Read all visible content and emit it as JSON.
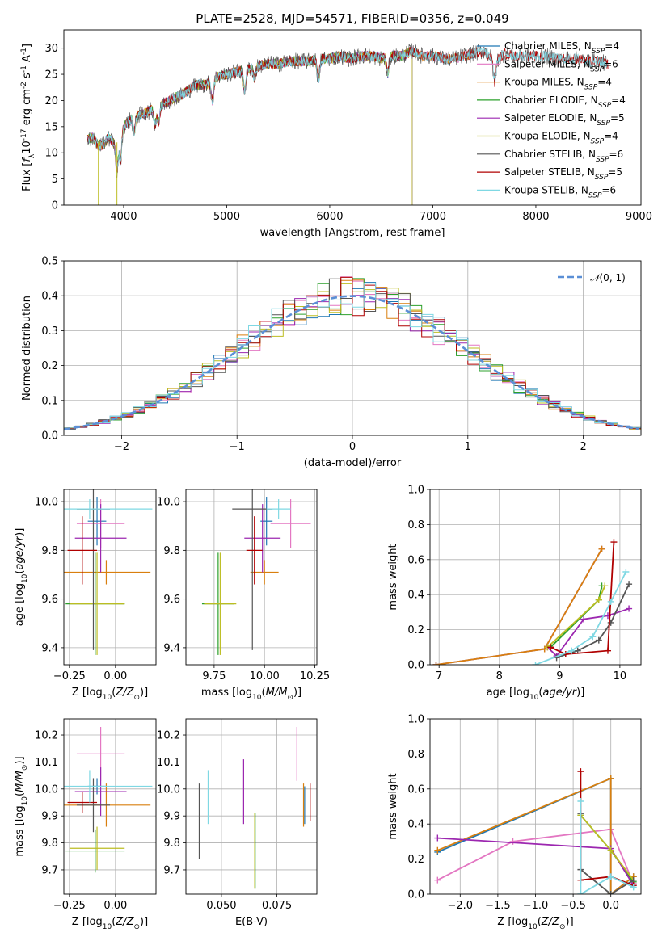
{
  "title": "PLATE=2528, MJD=54571, FIBERID=0356, z=0.049",
  "colors": {
    "Chabrier MILES": "#1f77b4",
    "Salpeter MILES": "#e377c2",
    "Kroupa MILES": "#d97f0e",
    "Chabrier ELODIE": "#2ca02c",
    "Salpeter ELODIE": "#9c27b0",
    "Kroupa ELODIE": "#bcbd22",
    "Chabrier STELIB": "#555555",
    "Salpeter STELIB": "#b00000",
    "Kroupa STELIB": "#7fd8e3",
    "normal_curve": "#5b8fd6"
  },
  "chart_data": [
    {
      "type": "line",
      "xlabel": "wavelength [Angstrom, rest frame]",
      "ylabel": "Flux [f_λ10^-17 erg cm^-2 s^-1 A^-1]",
      "xlim": [
        3420,
        9020
      ],
      "ylim": [
        0,
        33.5
      ],
      "xticks": [
        4000,
        5000,
        6000,
        7000,
        8000,
        9000
      ],
      "yticks": [
        0,
        5,
        10,
        15,
        20,
        25,
        30
      ],
      "grid": false,
      "legend_position": "right",
      "spectrum": {
        "x": [
          3650,
          3700,
          3750,
          3800,
          3850,
          3900,
          3950,
          4000,
          4100,
          4200,
          4300,
          4400,
          4500,
          4600,
          4700,
          4800,
          4900,
          5000,
          5100,
          5200,
          5300,
          5400,
          5500,
          5600,
          5700,
          5800,
          5900,
          6000,
          6100,
          6200,
          6300,
          6400,
          6500,
          6600,
          6700,
          6800,
          6900,
          7000,
          7100,
          7200,
          7300,
          7400,
          7500,
          7600,
          7700,
          7800,
          7900,
          8000,
          8100,
          8200,
          8300,
          8400,
          8500,
          8600,
          8700
        ],
        "y": [
          12.5,
          13.0,
          11.5,
          11.5,
          13.0,
          12.0,
          14.0,
          15.0,
          17.0,
          17.5,
          18.5,
          19.5,
          20.5,
          21.5,
          23.0,
          23.0,
          24.5,
          25.0,
          25.5,
          26.0,
          26.5,
          27.0,
          27.0,
          27.5,
          27.5,
          27.5,
          28.0,
          28.0,
          28.5,
          28.0,
          28.5,
          28.5,
          28.0,
          28.5,
          28.5,
          29.5,
          28.5,
          28.5,
          28.0,
          28.0,
          28.5,
          29.0,
          29.5,
          27.5,
          29.0,
          28.5,
          28.5,
          28.5,
          28.5,
          28.0,
          28.0,
          28.0,
          27.5,
          27.5,
          27.0
        ]
      },
      "series": [
        {
          "name": "Chabrier MILES, N_SSP=4",
          "model_end": 7400
        },
        {
          "name": "Salpeter MILES, N_SSP=6",
          "model_end": 7400
        },
        {
          "name": "Kroupa MILES, N_SSP=4",
          "model_end": 7400
        },
        {
          "name": "Chabrier ELODIE, N_SSP=4",
          "model_end": 6800
        },
        {
          "name": "Salpeter ELODIE, N_SSP=5",
          "model_end": 6800
        },
        {
          "name": "Kroupa ELODIE, N_SSP=4",
          "model_end": 6800
        },
        {
          "name": "Chabrier STELIB, N_SSP=6",
          "model_end": 8700
        },
        {
          "name": "Salpeter STELIB, N_SSP=5",
          "model_end": 8700
        },
        {
          "name": "Kroupa STELIB, N_SSP=6",
          "model_end": 8700
        }
      ]
    },
    {
      "type": "line",
      "xlabel": "(data-model)/error",
      "ylabel": "Normed distribution",
      "xlim": [
        -2.5,
        2.5
      ],
      "ylim": [
        0,
        0.5
      ],
      "xticks": [
        -2,
        -1,
        0,
        1,
        2
      ],
      "yticks": [
        0.0,
        0.1,
        0.2,
        0.3,
        0.4,
        0.5
      ],
      "grid": true,
      "legend_position": "top-right",
      "legend_label": "N(0,1)",
      "histogram_bin_width": 0.1
    },
    {
      "type": "scatter",
      "xlabel": "Z [log10(Z/Z☉)]",
      "ylabel": "age  [log10(age/yr)]",
      "xlim": [
        -0.28,
        0.22
      ],
      "ylim": [
        9.33,
        10.05
      ],
      "xticks": [
        -0.25,
        0.0
      ],
      "yticks": [
        9.4,
        9.6,
        9.8,
        10.0
      ],
      "points": [
        {
          "model": "Chabrier MILES",
          "x": -0.1,
          "y": 9.92,
          "xerr": 0.05,
          "yerr": 0.1
        },
        {
          "model": "Salpeter MILES",
          "x": -0.08,
          "y": 9.91,
          "xerr": 0.13,
          "yerr": 0.1
        },
        {
          "model": "Kroupa MILES",
          "x": -0.05,
          "y": 9.71,
          "xerr": 0.24,
          "yerr": 0.05
        },
        {
          "model": "Chabrier ELODIE",
          "x": -0.11,
          "y": 9.58,
          "xerr": 0.16,
          "yerr": 0.21
        },
        {
          "model": "Salpeter ELODIE",
          "x": -0.08,
          "y": 9.85,
          "xerr": 0.14,
          "yerr": 0.14
        },
        {
          "model": "Kroupa ELODIE",
          "x": -0.1,
          "y": 9.58,
          "xerr": 0.15,
          "yerr": 0.21
        },
        {
          "model": "Chabrier STELIB",
          "x": -0.12,
          "y": 9.97,
          "xerr": 0.09,
          "yerr": 0.58
        },
        {
          "model": "Salpeter STELIB",
          "x": -0.18,
          "y": 9.8,
          "xerr": 0.08,
          "yerr": 0.14
        },
        {
          "model": "Kroupa STELIB",
          "x": -0.14,
          "y": 9.97,
          "xerr": 0.34,
          "yerr": 0.04
        }
      ]
    },
    {
      "type": "scatter",
      "xlabel": "mass [log10(M/M☉)]",
      "ylabel": "",
      "xlim": [
        9.61,
        10.26
      ],
      "ylim": [
        9.33,
        10.05
      ],
      "xticks": [
        9.75,
        10.0,
        10.25
      ],
      "yticks": [
        9.4,
        9.6,
        9.8,
        10.0
      ],
      "points": [
        {
          "model": "Chabrier MILES",
          "x": 10.01,
          "y": 9.92,
          "xerr": 0.03,
          "yerr": 0.1
        },
        {
          "model": "Salpeter MILES",
          "x": 10.13,
          "y": 9.91,
          "xerr": 0.1,
          "yerr": 0.1
        },
        {
          "model": "Kroupa MILES",
          "x": 10.0,
          "y": 9.71,
          "xerr": 0.07,
          "yerr": 0.05
        },
        {
          "model": "Chabrier ELODIE",
          "x": 9.77,
          "y": 9.58,
          "xerr": 0.08,
          "yerr": 0.21
        },
        {
          "model": "Salpeter ELODIE",
          "x": 9.99,
          "y": 9.85,
          "xerr": 0.09,
          "yerr": 0.14
        },
        {
          "model": "Kroupa ELODIE",
          "x": 9.78,
          "y": 9.58,
          "xerr": 0.08,
          "yerr": 0.21
        },
        {
          "model": "Chabrier STELIB",
          "x": 9.94,
          "y": 9.97,
          "xerr": 0.1,
          "yerr": 0.58
        },
        {
          "model": "Salpeter STELIB",
          "x": 9.95,
          "y": 9.8,
          "xerr": 0.04,
          "yerr": 0.14
        },
        {
          "model": "Kroupa STELIB",
          "x": 10.07,
          "y": 9.97,
          "xerr": 0.06,
          "yerr": 0.04
        }
      ]
    },
    {
      "type": "line",
      "xlabel": "age  [log10(age/yr)]",
      "ylabel": "mass weight",
      "xlim": [
        6.85,
        10.35
      ],
      "ylim": [
        0,
        1.0
      ],
      "xticks": [
        7,
        8,
        9,
        10
      ],
      "yticks": [
        0.0,
        0.2,
        0.4,
        0.6,
        0.8,
        1.0
      ],
      "grid": true,
      "series": [
        {
          "model": "Chabrier MILES",
          "x": [
            6.95,
            8.75,
            9.7
          ],
          "y": [
            0.0,
            0.09,
            0.66
          ]
        },
        {
          "model": "Salpeter MILES",
          "x": [
            6.95,
            8.75,
            9.7
          ],
          "y": [
            0.0,
            0.09,
            0.66
          ]
        },
        {
          "model": "Kroupa MILES",
          "x": [
            6.95,
            8.75,
            9.7
          ],
          "y": [
            0.0,
            0.09,
            0.66
          ]
        },
        {
          "model": "Chabrier ELODIE",
          "x": [
            8.85,
            9.65,
            9.7
          ],
          "y": [
            0.1,
            0.37,
            0.45
          ]
        },
        {
          "model": "Salpeter ELODIE",
          "x": [
            8.8,
            8.95,
            9.4,
            9.8,
            10.15
          ],
          "y": [
            0.1,
            0.05,
            0.26,
            0.28,
            0.32
          ]
        },
        {
          "model": "Kroupa ELODIE",
          "x": [
            8.8,
            9.65,
            9.75
          ],
          "y": [
            0.1,
            0.37,
            0.45
          ]
        },
        {
          "model": "Chabrier STELIB",
          "x": [
            8.95,
            9.3,
            9.65,
            9.85,
            10.15
          ],
          "y": [
            0.04,
            0.08,
            0.14,
            0.24,
            0.46
          ]
        },
        {
          "model": "Salpeter STELIB",
          "x": [
            8.85,
            9.1,
            9.8,
            9.9
          ],
          "y": [
            0.1,
            0.06,
            0.08,
            0.7
          ]
        },
        {
          "model": "Kroupa STELIB",
          "x": [
            8.6,
            9.2,
            9.55,
            9.85,
            10.1
          ],
          "y": [
            0.0,
            0.08,
            0.16,
            0.36,
            0.53
          ]
        }
      ]
    },
    {
      "type": "scatter",
      "xlabel": "Z [log10(Z/Z☉)]",
      "ylabel": "mass [log10(M/M☉)]",
      "xlim": [
        -0.28,
        0.22
      ],
      "ylim": [
        9.61,
        10.26
      ],
      "xticks": [
        -0.25,
        0.0
      ],
      "yticks": [
        9.7,
        9.8,
        9.9,
        10.0,
        10.1,
        10.2
      ],
      "points": [
        {
          "model": "Chabrier MILES",
          "x": -0.1,
          "y": 10.01,
          "xerr": 0.05,
          "yerr": 0.03
        },
        {
          "model": "Salpeter MILES",
          "x": -0.08,
          "y": 10.13,
          "xerr": 0.13,
          "yerr": 0.1
        },
        {
          "model": "Kroupa MILES",
          "x": -0.05,
          "y": 9.94,
          "xerr": 0.24,
          "yerr": 0.08
        },
        {
          "model": "Chabrier ELODIE",
          "x": -0.11,
          "y": 9.77,
          "xerr": 0.16,
          "yerr": 0.08
        },
        {
          "model": "Salpeter ELODIE",
          "x": -0.08,
          "y": 9.99,
          "xerr": 0.14,
          "yerr": 0.09
        },
        {
          "model": "Kroupa ELODIE",
          "x": -0.1,
          "y": 9.78,
          "xerr": 0.15,
          "yerr": 0.08
        },
        {
          "model": "Chabrier STELIB",
          "x": -0.12,
          "y": 9.94,
          "xerr": 0.09,
          "yerr": 0.1
        },
        {
          "model": "Salpeter STELIB",
          "x": -0.18,
          "y": 9.95,
          "xerr": 0.08,
          "yerr": 0.04
        },
        {
          "model": "Kroupa STELIB",
          "x": -0.14,
          "y": 10.01,
          "xerr": 0.34,
          "yerr": 0.06
        }
      ]
    },
    {
      "type": "scatter",
      "xlabel": "E(B-V)",
      "ylabel": "",
      "xlim": [
        0.034,
        0.093
      ],
      "ylim": [
        9.61,
        10.26
      ],
      "xticks": [
        0.05,
        0.075
      ],
      "yticks": [
        9.7,
        9.8,
        9.9,
        10.0,
        10.1,
        10.2
      ],
      "points": [
        {
          "model": "Chabrier MILES",
          "x": 0.0875,
          "y": 9.94,
          "yerr": 0.07
        },
        {
          "model": "Salpeter MILES",
          "x": 0.084,
          "y": 10.13,
          "yerr": 0.1
        },
        {
          "model": "Kroupa MILES",
          "x": 0.087,
          "y": 9.94,
          "yerr": 0.08
        },
        {
          "model": "Chabrier ELODIE",
          "x": 0.0652,
          "y": 9.77,
          "yerr": 0.14
        },
        {
          "model": "Salpeter ELODIE",
          "x": 0.06,
          "y": 9.99,
          "yerr": 0.12
        },
        {
          "model": "Kroupa ELODIE",
          "x": 0.065,
          "y": 9.77,
          "yerr": 0.14
        },
        {
          "model": "Chabrier STELIB",
          "x": 0.04,
          "y": 9.88,
          "yerr": 0.14
        },
        {
          "model": "Salpeter STELIB",
          "x": 0.09,
          "y": 9.95,
          "yerr": 0.07
        },
        {
          "model": "Kroupa STELIB",
          "x": 0.044,
          "y": 9.97,
          "yerr": 0.1
        }
      ]
    },
    {
      "type": "line",
      "xlabel": "Z [log10(Z/Z☉)]",
      "ylabel": "mass weight",
      "xlim": [
        -2.4,
        0.4
      ],
      "ylim": [
        0,
        1.0
      ],
      "xticks": [
        -2.0,
        -1.5,
        -1.0,
        -0.5,
        0.0
      ],
      "yticks": [
        0.0,
        0.2,
        0.4,
        0.6,
        0.8,
        1.0
      ],
      "grid": true,
      "series": [
        {
          "model": "Chabrier MILES",
          "x": [
            -2.3,
            0.0,
            0.0,
            0.3
          ],
          "y": [
            0.24,
            0.66,
            0.0,
            0.1
          ]
        },
        {
          "model": "Salpeter MILES",
          "x": [
            -2.3,
            -1.3,
            0.0,
            0.3
          ],
          "y": [
            0.08,
            0.3,
            0.37,
            0.06
          ]
        },
        {
          "model": "Kroupa MILES",
          "x": [
            -2.3,
            0.0,
            0.0,
            0.3
          ],
          "y": [
            0.25,
            0.66,
            0.0,
            0.1
          ]
        },
        {
          "model": "Chabrier ELODIE",
          "x": [
            -0.4,
            0.0,
            0.3
          ],
          "y": [
            0.45,
            0.25,
            0.07
          ]
        },
        {
          "model": "Salpeter ELODIE",
          "x": [
            -2.3,
            0.0,
            0.3
          ],
          "y": [
            0.32,
            0.26,
            0.05
          ]
        },
        {
          "model": "Kroupa ELODIE",
          "x": [
            -0.4,
            0.0,
            0.3
          ],
          "y": [
            0.45,
            0.25,
            0.08
          ]
        },
        {
          "model": "Chabrier STELIB",
          "x": [
            -0.4,
            -0.4,
            0.0,
            0.3
          ],
          "y": [
            0.46,
            0.14,
            0.0,
            0.08
          ]
        },
        {
          "model": "Salpeter STELIB",
          "x": [
            -0.4,
            -0.4,
            0.0,
            0.3
          ],
          "y": [
            0.7,
            0.08,
            0.1,
            0.05
          ]
        },
        {
          "model": "Kroupa STELIB",
          "x": [
            -0.4,
            -0.4,
            0.0,
            0.3
          ],
          "y": [
            0.53,
            0.0,
            0.1,
            0.04
          ]
        }
      ]
    }
  ]
}
